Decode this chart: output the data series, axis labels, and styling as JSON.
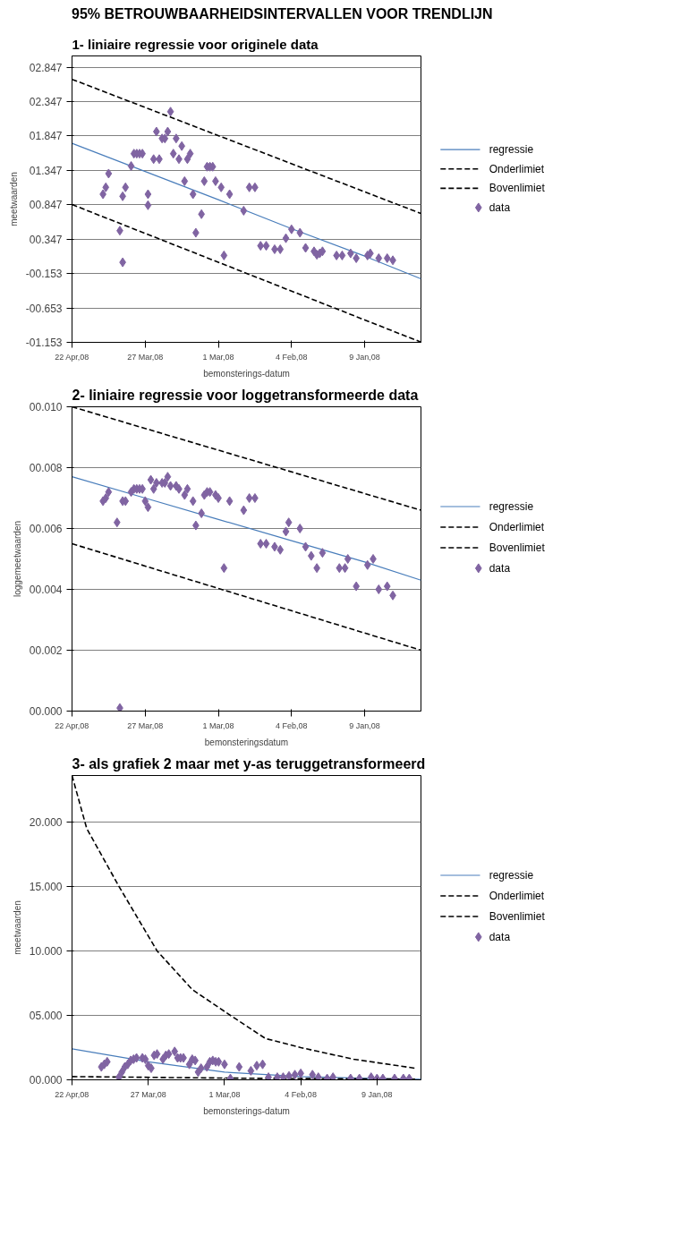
{
  "chart_data": [
    {
      "type": "scatter",
      "title": "95% BETROUWBAARHEIDSINTERVALLEN VOOR TRENDLIJN",
      "subtitle": "1- liniaire regressie voor originele data",
      "xlabel": "bemonsterings-datum",
      "ylabel": "meetwaarden",
      "xlim": [
        "2008-04-22",
        "2007-12-20"
      ],
      "xticks": [
        {
          "value": "2008-04-22",
          "label": "22 Apr,08"
        },
        {
          "value": "2008-03-27",
          "label": "27 Mar,08"
        },
        {
          "value": "2008-03-01",
          "label": "1 Mar,08"
        },
        {
          "value": "2008-02-04",
          "label": "4 Feb,08"
        },
        {
          "value": "2008-01-09",
          "label": "9 Jan,08"
        }
      ],
      "ylim": [
        -1.153,
        3.01
      ],
      "yticks": [
        {
          "value": 2.847,
          "label": "02.847"
        },
        {
          "value": 2.347,
          "label": "02.347"
        },
        {
          "value": 1.847,
          "label": "01.847"
        },
        {
          "value": 1.347,
          "label": "01.347"
        },
        {
          "value": 0.847,
          "label": "00.847"
        },
        {
          "value": 0.347,
          "label": "00.347"
        },
        {
          "value": -0.153,
          "label": "-00.153"
        },
        {
          "value": -0.653,
          "label": "-00.653"
        },
        {
          "value": -1.153,
          "label": "-01.153"
        }
      ],
      "grid": "y",
      "legend": "right",
      "series": [
        {
          "name": "regressie",
          "type": "line",
          "color": "#4a7ebb",
          "line_style": "solid",
          "x": [
            "2008-04-22",
            "2008-03-27",
            "2008-03-01",
            "2008-02-04",
            "2008-01-09",
            "2007-12-20"
          ],
          "values": [
            1.74,
            1.33,
            0.92,
            0.5,
            0.1,
            -0.23
          ]
        },
        {
          "name": "Onderlimiet",
          "type": "line",
          "color": "#000000",
          "line_style": "dashed",
          "x": [
            "2008-04-22",
            "2007-12-20"
          ],
          "values": [
            2.67,
            0.72
          ]
        },
        {
          "name": "Bovenlimiet",
          "type": "line",
          "color": "#000000",
          "line_style": "dashed",
          "x": [
            "2008-04-22",
            "2007-12-20"
          ],
          "values": [
            0.85,
            -1.15
          ]
        },
        {
          "name": "data",
          "color": "#8064a2",
          "marker": "diamond",
          "x": [
            "2008-04-11",
            "2008-04-10",
            "2008-04-09",
            "2008-04-05",
            "2008-04-04",
            "2008-04-04",
            "2008-04-03",
            "2008-04-01",
            "2008-03-31",
            "2008-03-30",
            "2008-03-29",
            "2008-03-28",
            "2008-03-26",
            "2008-03-26",
            "2008-03-24",
            "2008-03-23",
            "2008-03-22",
            "2008-03-21",
            "2008-03-20",
            "2008-03-19",
            "2008-03-18",
            "2008-03-17",
            "2008-03-16",
            "2008-03-15",
            "2008-03-14",
            "2008-03-13",
            "2008-03-12",
            "2008-03-11",
            "2008-03-10",
            "2008-03-09",
            "2008-03-07",
            "2008-03-06",
            "2008-03-05",
            "2008-03-04",
            "2008-03-03",
            "2008-03-02",
            "2008-02-29",
            "2008-02-28",
            "2008-02-26",
            "2008-02-21",
            "2008-02-19",
            "2008-02-17",
            "2008-02-15",
            "2008-02-13",
            "2008-02-10",
            "2008-02-08",
            "2008-02-06",
            "2008-02-04",
            "2008-02-01",
            "2008-01-30",
            "2008-01-27",
            "2008-01-26",
            "2008-01-25",
            "2008-01-24",
            "2008-01-19",
            "2008-01-17",
            "2008-01-14",
            "2008-01-12",
            "2008-01-08",
            "2008-01-07",
            "2008-01-04",
            "2008-01-01",
            "2007-12-30"
          ],
          "values": [
            1.0,
            1.1,
            1.3,
            0.47,
            0.01,
            0.97,
            1.1,
            1.41,
            1.59,
            1.59,
            1.59,
            1.59,
            1.0,
            0.84,
            1.51,
            1.91,
            1.51,
            1.81,
            1.81,
            1.91,
            2.2,
            1.59,
            1.81,
            1.51,
            1.7,
            1.19,
            1.51,
            1.59,
            1.0,
            0.44,
            0.71,
            1.19,
            1.4,
            1.4,
            1.4,
            1.19,
            1.1,
            0.11,
            1.0,
            0.76,
            1.1,
            1.1,
            0.25,
            0.25,
            0.2,
            0.2,
            0.36,
            0.49,
            0.44,
            0.22,
            0.17,
            0.12,
            0.14,
            0.17,
            0.11,
            0.11,
            0.14,
            0.07,
            0.11,
            0.14,
            0.07,
            0.07,
            0.04
          ]
        }
      ]
    },
    {
      "type": "scatter",
      "title": "2- liniaire regressie voor loggetransformeerde data",
      "xlabel": "bemonsteringsdatum",
      "ylabel": "loggemeetwaarden",
      "xlim": [
        "2008-04-22",
        "2007-12-20"
      ],
      "xticks": [
        {
          "value": "2008-04-22",
          "label": "22 Apr,08"
        },
        {
          "value": "2008-03-27",
          "label": "27 Mar,08"
        },
        {
          "value": "2008-03-01",
          "label": "1 Mar,08"
        },
        {
          "value": "2008-02-04",
          "label": "4 Feb,08"
        },
        {
          "value": "2008-01-09",
          "label": "9 Jan,08"
        }
      ],
      "ylim": [
        0,
        0.01
      ],
      "yticks": [
        {
          "value": 0,
          "label": "00.000"
        },
        {
          "value": 0.002,
          "label": "00.002"
        },
        {
          "value": 0.004,
          "label": "00.004"
        },
        {
          "value": 0.006,
          "label": "00.006"
        },
        {
          "value": 0.008,
          "label": "00.008"
        },
        {
          "value": 0.01,
          "label": "00.010"
        }
      ],
      "grid": "y",
      "legend": "right",
      "series": [
        {
          "name": "regressie",
          "type": "line",
          "color": "#4a7ebb",
          "line_style": "solid",
          "x": [
            "2008-04-22",
            "2008-03-27",
            "2008-03-01",
            "2008-02-04",
            "2008-01-09",
            "2007-12-20"
          ],
          "values": [
            0.0077,
            0.007,
            0.0063,
            0.0056,
            0.0049,
            0.0043
          ]
        },
        {
          "name": "Onderlimiet",
          "type": "line",
          "color": "#000000",
          "line_style": "dashed",
          "x": [
            "2008-04-22",
            "2007-12-20"
          ],
          "values": [
            0.01,
            0.0066
          ]
        },
        {
          "name": "Bovenlimiet",
          "type": "line",
          "color": "#000000",
          "line_style": "dashed",
          "x": [
            "2008-04-22",
            "2007-12-20"
          ],
          "values": [
            0.0055,
            0.002
          ]
        },
        {
          "name": "data",
          "color": "#8064a2",
          "marker": "diamond",
          "x": [
            "2008-04-11",
            "2008-04-10",
            "2008-04-09",
            "2008-04-06",
            "2008-04-05",
            "2008-04-04",
            "2008-04-03",
            "2008-04-01",
            "2008-03-31",
            "2008-03-30",
            "2008-03-29",
            "2008-03-28",
            "2008-03-27",
            "2008-03-26",
            "2008-03-25",
            "2008-03-24",
            "2008-03-23",
            "2008-03-21",
            "2008-03-20",
            "2008-03-19",
            "2008-03-18",
            "2008-03-16",
            "2008-03-15",
            "2008-03-13",
            "2008-03-12",
            "2008-03-10",
            "2008-03-09",
            "2008-03-07",
            "2008-03-06",
            "2008-03-05",
            "2008-03-04",
            "2008-03-02",
            "2008-03-01",
            "2008-02-28",
            "2008-02-26",
            "2008-02-21",
            "2008-02-19",
            "2008-02-17",
            "2008-02-15",
            "2008-02-13",
            "2008-02-10",
            "2008-02-08",
            "2008-02-06",
            "2008-02-05",
            "2008-02-01",
            "2008-01-30",
            "2008-01-28",
            "2008-01-26",
            "2008-01-24",
            "2008-01-18",
            "2008-01-16",
            "2008-01-15",
            "2008-01-12",
            "2008-01-08",
            "2008-01-06",
            "2008-01-04",
            "2008-01-01",
            "2007-12-30"
          ],
          "values": [
            0.0069,
            0.007,
            0.0072,
            0.0062,
            0.0001,
            0.0069,
            0.0069,
            0.0072,
            0.0073,
            0.0073,
            0.0073,
            0.0073,
            0.0069,
            0.0067,
            0.0076,
            0.0073,
            0.0075,
            0.0075,
            0.0075,
            0.0077,
            0.0074,
            0.0074,
            0.0073,
            0.0071,
            0.0073,
            0.0069,
            0.0061,
            0.0065,
            0.0071,
            0.0072,
            0.0072,
            0.0071,
            0.007,
            0.0047,
            0.0069,
            0.0066,
            0.007,
            0.007,
            0.0055,
            0.0055,
            0.0054,
            0.0053,
            0.0059,
            0.0062,
            0.006,
            0.0054,
            0.0051,
            0.0047,
            0.0052,
            0.0047,
            0.0047,
            0.005,
            0.0041,
            0.0048,
            0.005,
            0.004,
            0.0041,
            0.0038
          ]
        }
      ]
    },
    {
      "type": "scatter",
      "title": "3- als grafiek 2 maar met y-as teruggetransformeerd",
      "xlabel": "bemonsterings-datum",
      "ylabel": "meetwaarden",
      "xlim": [
        "2008-04-22",
        "2007-12-25"
      ],
      "xticks": [
        {
          "value": "2008-04-22",
          "label": "22 Apr,08"
        },
        {
          "value": "2008-03-27",
          "label": "27 Mar,08"
        },
        {
          "value": "2008-03-01",
          "label": "1 Mar,08"
        },
        {
          "value": "2008-02-04",
          "label": "4 Feb,08"
        },
        {
          "value": "2008-01-09",
          "label": "9 Jan,08"
        }
      ],
      "ylim": [
        0,
        23.6
      ],
      "yticks": [
        {
          "value": 0,
          "label": "00.000"
        },
        {
          "value": 5,
          "label": "05.000"
        },
        {
          "value": 10,
          "label": "10.000"
        },
        {
          "value": 15,
          "label": "15.000"
        },
        {
          "value": 20,
          "label": "20.000"
        }
      ],
      "grid": "y",
      "legend": "right",
      "series": [
        {
          "name": "regressie",
          "type": "line",
          "color": "#4a7ebb",
          "line_style": "solid",
          "x": [
            "2008-04-22",
            "2008-03-27",
            "2008-03-01",
            "2008-02-04",
            "2008-01-09",
            "2007-12-25"
          ],
          "values": [
            2.4,
            1.4,
            0.6,
            0.25,
            0.1,
            0.05
          ]
        },
        {
          "name": "Onderlimiet",
          "type": "line",
          "color": "#000000",
          "line_style": "dashed",
          "x": [
            "2008-04-22",
            "2008-04-17",
            "2008-04-06",
            "2008-03-24",
            "2008-03-12",
            "2008-02-28",
            "2008-02-16",
            "2008-02-04",
            "2008-01-17",
            "2007-12-27"
          ],
          "values": [
            23.6,
            19.5,
            15,
            10,
            7,
            5,
            3.2,
            2.5,
            1.6,
            0.9
          ]
        },
        {
          "name": "Bovenlimiet",
          "type": "line",
          "color": "#000000",
          "line_style": "dashed",
          "x": [
            "2008-04-22",
            "2008-02-22",
            "2007-12-27"
          ],
          "values": [
            0.25,
            0.12,
            0.05
          ]
        },
        {
          "name": "data",
          "color": "#8064a2",
          "marker": "diamond",
          "x": [
            "2008-04-12",
            "2008-04-11",
            "2008-04-10",
            "2008-04-06",
            "2008-04-05",
            "2008-04-04",
            "2008-04-03",
            "2008-04-02",
            "2008-04-01",
            "2008-03-31",
            "2008-03-29",
            "2008-03-28",
            "2008-03-27",
            "2008-03-26",
            "2008-03-25",
            "2008-03-24",
            "2008-03-22",
            "2008-03-21",
            "2008-03-20",
            "2008-03-18",
            "2008-03-17",
            "2008-03-16",
            "2008-03-15",
            "2008-03-13",
            "2008-03-12",
            "2008-03-11",
            "2008-03-10",
            "2008-03-09",
            "2008-03-07",
            "2008-03-06",
            "2008-03-05",
            "2008-03-04",
            "2008-03-03",
            "2008-03-01",
            "2008-02-28",
            "2008-02-25",
            "2008-02-21",
            "2008-02-19",
            "2008-02-17",
            "2008-02-15",
            "2008-02-12",
            "2008-02-10",
            "2008-02-08",
            "2008-02-06",
            "2008-02-04",
            "2008-01-31",
            "2008-01-29",
            "2008-01-26",
            "2008-01-24",
            "2008-01-18",
            "2008-01-15",
            "2008-01-11",
            "2008-01-09",
            "2008-01-07",
            "2008-01-03",
            "2007-12-31",
            "2007-12-29"
          ],
          "values": [
            1.0,
            1.2,
            1.4,
            0.2,
            0.6,
            1.0,
            1.2,
            1.5,
            1.6,
            1.7,
            1.7,
            1.6,
            1.1,
            0.9,
            1.9,
            2.0,
            1.6,
            1.9,
            2.0,
            2.2,
            1.7,
            1.7,
            1.7,
            1.2,
            1.6,
            1.5,
            0.6,
            0.9,
            1.0,
            1.4,
            1.5,
            1.4,
            1.4,
            1.2,
            0.1,
            1.0,
            0.7,
            1.1,
            1.2,
            0.2,
            0.2,
            0.2,
            0.3,
            0.4,
            0.5,
            0.4,
            0.2,
            0.1,
            0.2,
            0.1,
            0.1,
            0.2,
            0.1,
            0.1,
            0.1,
            0.1,
            0.1
          ]
        }
      ]
    }
  ]
}
